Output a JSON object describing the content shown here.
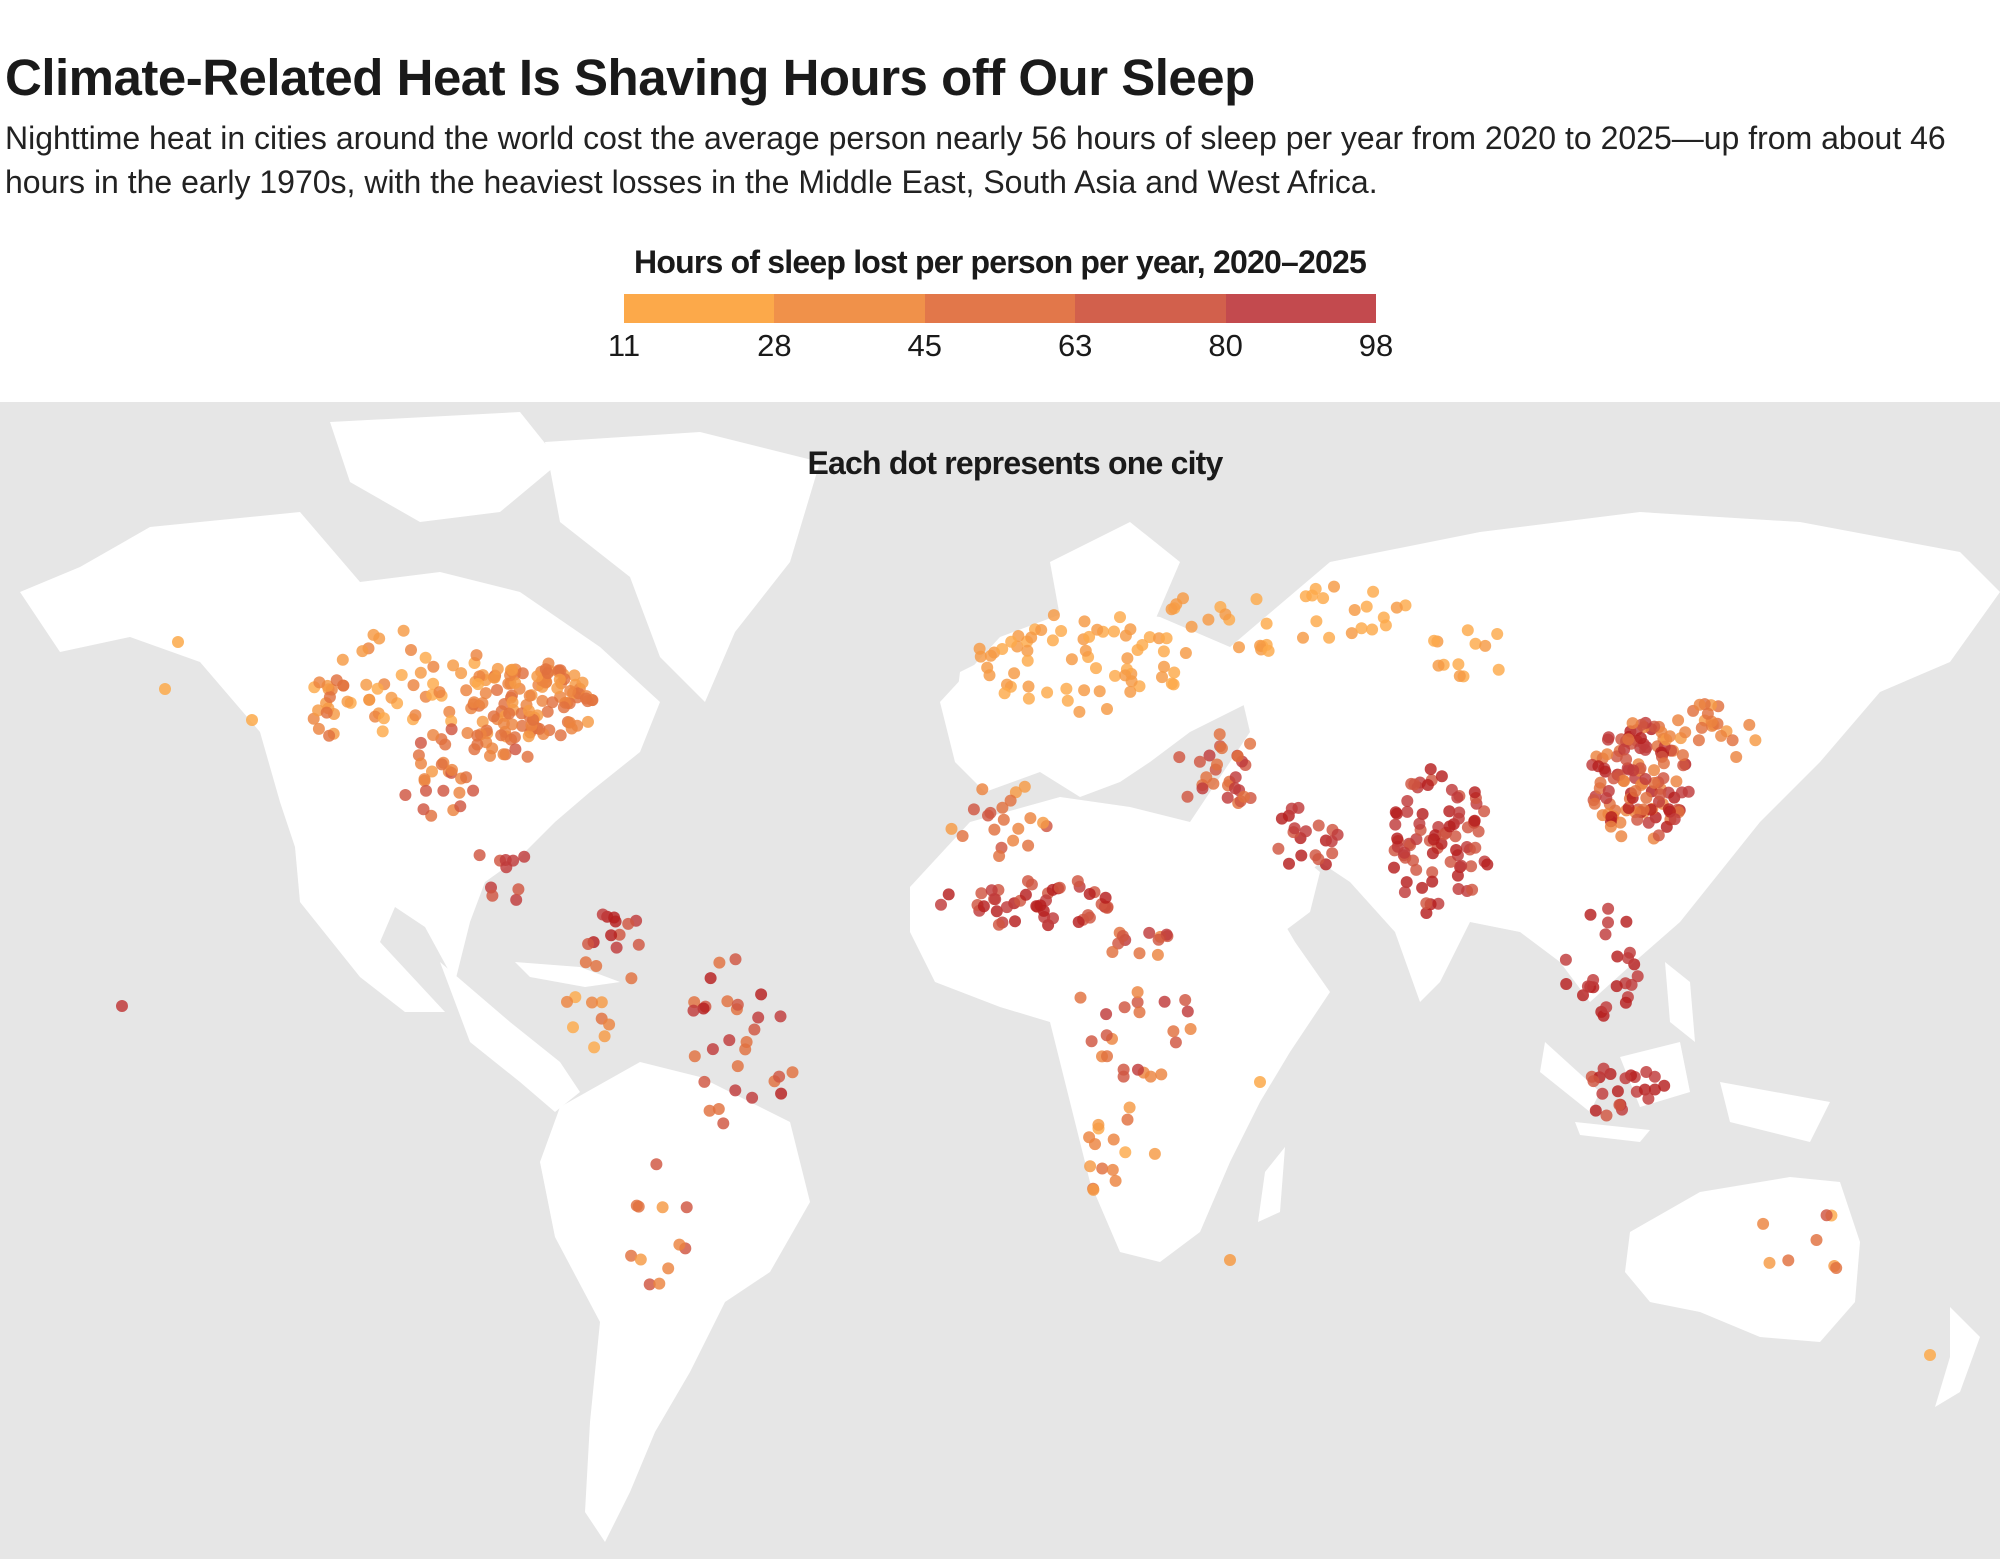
{
  "header": {
    "title": "Climate-Related Heat Is Shaving Hours off Our Sleep",
    "subtitle": "Nighttime heat in cities around the world cost the average person nearly 56 hours of sleep per year from 2020 to 2025—up from about 46 hours in the early 1970s, with the heaviest losses in the Middle East, South Asia and West Africa."
  },
  "legend": {
    "title": "Hours of sleep lost per person per year, 2020–2025",
    "ticks": [
      "11",
      "28",
      "45",
      "63",
      "80",
      "98"
    ],
    "colors": [
      "#fca94a",
      "#f0914a",
      "#e2774a",
      "#d2604c",
      "#c34a4e"
    ]
  },
  "map": {
    "note": "Each dot represents one city",
    "colors": {
      "ocean": "#e6e6e6",
      "land": "#ffffff"
    }
  }
}
